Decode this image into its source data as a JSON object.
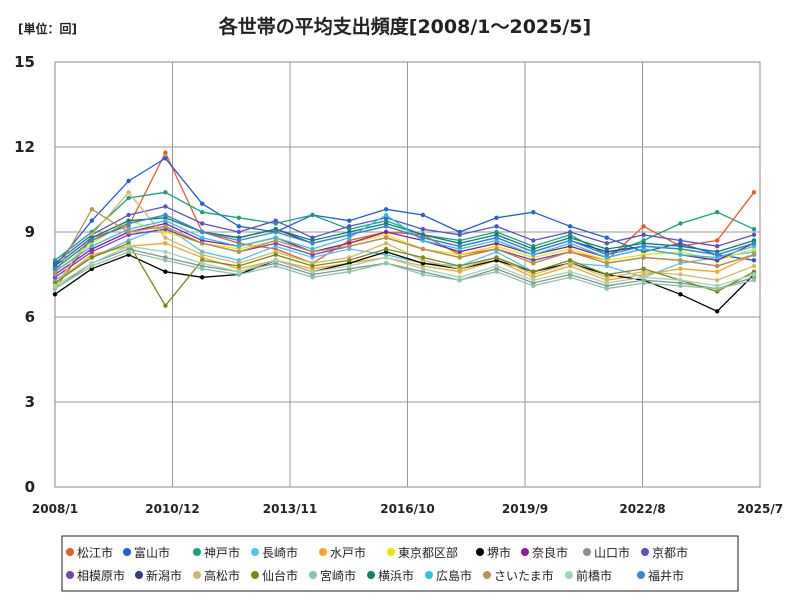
{
  "chart_data": {
    "type": "line",
    "title": "各世帯の平均支出頻度[2008/1～2025/5]",
    "unit_label": "[単位：回]",
    "xlabel": "",
    "ylabel": "",
    "ylim": [
      0,
      15
    ],
    "y_ticks": [
      0,
      3,
      6,
      9,
      12,
      15
    ],
    "x_range": [
      "2008/1",
      "2025/7"
    ],
    "x_ticks": [
      "2008/1",
      "2010/12",
      "2013/11",
      "2016/10",
      "2019/9",
      "2022/8",
      "2025/7"
    ],
    "grid": true,
    "legend_position": "bottom",
    "series": [
      {
        "name": "松江市",
        "color": "#f05a24",
        "values": [
          7.0,
          8.8,
          9.2,
          11.8,
          9.0,
          8.6,
          8.4,
          7.9,
          8.7,
          9.0,
          8.9,
          8.2,
          8.4,
          7.9,
          8.3,
          8.0,
          9.2,
          8.5,
          8.7,
          10.4
        ]
      },
      {
        "name": "富山市",
        "color": "#1f5fd8",
        "values": [
          7.8,
          9.4,
          10.8,
          11.6,
          10.0,
          9.2,
          9.0,
          9.6,
          9.4,
          9.8,
          9.6,
          9.0,
          9.5,
          9.7,
          9.2,
          8.8,
          8.3,
          8.6,
          8.2,
          8.0
        ]
      },
      {
        "name": "神戸市",
        "color": "#17a37a",
        "values": [
          8.0,
          9.0,
          10.2,
          10.4,
          9.7,
          9.5,
          9.3,
          9.6,
          9.1,
          9.4,
          8.9,
          8.7,
          9.0,
          8.5,
          8.9,
          8.2,
          8.7,
          9.3,
          9.7,
          9.1
        ]
      },
      {
        "name": "長崎市",
        "color": "#4fc3f7",
        "values": [
          7.3,
          8.1,
          8.7,
          9.2,
          8.3,
          8.0,
          8.5,
          8.1,
          8.4,
          8.2,
          7.9,
          7.8,
          8.3,
          7.6,
          7.9,
          7.8,
          7.4,
          7.9,
          8.1,
          8.3
        ]
      },
      {
        "name": "水戸市",
        "color": "#f5a623",
        "values": [
          7.2,
          8.2,
          8.5,
          8.6,
          8.1,
          7.7,
          8.0,
          7.7,
          7.9,
          8.1,
          7.8,
          7.6,
          8.0,
          7.4,
          7.8,
          7.3,
          7.5,
          7.7,
          7.6,
          8.2
        ]
      },
      {
        "name": "東京都区部",
        "color": "#f5e400",
        "values": [
          7.6,
          8.6,
          9.4,
          9.0,
          8.6,
          8.4,
          8.7,
          8.3,
          8.6,
          8.9,
          8.4,
          8.2,
          8.5,
          8.1,
          8.4,
          8.0,
          8.2,
          8.3,
          8.0,
          8.4
        ]
      },
      {
        "name": "堺市",
        "color": "#000000",
        "values": [
          6.8,
          7.7,
          8.2,
          7.6,
          7.4,
          7.5,
          8.0,
          7.6,
          7.9,
          8.3,
          7.9,
          7.7,
          8.0,
          7.6,
          7.9,
          7.5,
          7.3,
          6.8,
          6.2,
          7.5
        ]
      },
      {
        "name": "奈良市",
        "color": "#8e1a9e",
        "values": [
          7.5,
          8.4,
          9.0,
          9.3,
          8.7,
          8.5,
          8.8,
          8.3,
          8.6,
          9.0,
          8.7,
          8.3,
          8.6,
          8.2,
          8.5,
          8.1,
          8.4,
          8.2,
          8.0,
          8.6
        ]
      },
      {
        "name": "山口市",
        "color": "#8a8f99",
        "values": [
          7.0,
          7.9,
          8.4,
          8.1,
          7.8,
          7.6,
          7.9,
          7.5,
          7.7,
          7.9,
          7.6,
          7.3,
          7.7,
          7.2,
          7.5,
          7.1,
          7.3,
          7.2,
          7.0,
          7.4
        ]
      },
      {
        "name": "京都市",
        "color": "#5a4fcf",
        "values": [
          7.9,
          8.9,
          9.6,
          9.9,
          9.3,
          9.0,
          9.4,
          8.8,
          9.2,
          9.5,
          9.1,
          8.9,
          9.2,
          8.7,
          9.0,
          8.6,
          8.9,
          8.7,
          8.5,
          8.9
        ]
      },
      {
        "name": "相模原市",
        "color": "#7b3fb8",
        "values": [
          7.4,
          8.3,
          8.9,
          9.1,
          8.6,
          8.3,
          8.6,
          8.2,
          8.5,
          8.8,
          8.4,
          8.1,
          8.4,
          8.0,
          8.3,
          7.9,
          8.1,
          8.0,
          7.8,
          8.2
        ]
      },
      {
        "name": "新潟市",
        "color": "#2e3a8c",
        "values": [
          7.7,
          8.7,
          9.3,
          9.6,
          9.0,
          8.8,
          9.1,
          8.6,
          8.9,
          9.2,
          8.8,
          8.5,
          8.8,
          8.3,
          8.7,
          8.3,
          8.5,
          8.4,
          8.2,
          8.6
        ]
      },
      {
        "name": "高松市",
        "color": "#d4b86a",
        "values": [
          7.1,
          8.9,
          10.4,
          8.8,
          8.2,
          7.9,
          8.3,
          7.9,
          8.1,
          8.6,
          8.0,
          7.7,
          8.1,
          7.5,
          7.9,
          7.4,
          7.6,
          7.5,
          7.3,
          7.8
        ]
      },
      {
        "name": "仙台市",
        "color": "#7a8a10",
        "values": [
          7.2,
          8.1,
          8.6,
          6.4,
          8.0,
          7.8,
          8.2,
          7.8,
          8.0,
          8.4,
          8.1,
          7.8,
          8.1,
          7.6,
          8.0,
          7.5,
          7.7,
          7.3,
          6.9,
          7.6
        ]
      },
      {
        "name": "宮崎市",
        "color": "#86c9a0",
        "values": [
          7.0,
          7.8,
          8.3,
          8.0,
          7.7,
          7.5,
          7.8,
          7.4,
          7.6,
          7.9,
          7.5,
          7.3,
          7.6,
          7.1,
          7.4,
          7.0,
          7.2,
          7.1,
          7.0,
          7.3
        ]
      },
      {
        "name": "横浜市",
        "color": "#0e7f6a",
        "values": [
          7.8,
          8.8,
          9.4,
          9.5,
          9.0,
          8.8,
          9.1,
          8.7,
          9.0,
          9.3,
          8.9,
          8.6,
          8.9,
          8.4,
          8.8,
          8.4,
          8.6,
          8.5,
          8.3,
          8.7
        ]
      },
      {
        "name": "広島市",
        "color": "#29c5e6",
        "values": [
          7.6,
          8.5,
          9.1,
          9.4,
          8.8,
          8.5,
          8.8,
          8.4,
          8.8,
          9.6,
          8.7,
          8.4,
          8.7,
          8.2,
          8.6,
          8.1,
          8.4,
          8.2,
          8.1,
          8.5
        ]
      },
      {
        "name": "さいたま市",
        "color": "#b8954a",
        "values": [
          7.5,
          9.8,
          9.0,
          9.2,
          8.6,
          8.3,
          8.7,
          8.3,
          8.5,
          8.8,
          8.4,
          8.1,
          8.4,
          7.9,
          8.3,
          7.9,
          8.1,
          8.0,
          7.8,
          8.2
        ]
      },
      {
        "name": "前橋市",
        "color": "#9fd6b0",
        "values": [
          7.1,
          7.9,
          8.5,
          8.3,
          7.9,
          7.6,
          8.0,
          7.6,
          7.8,
          8.1,
          7.7,
          7.4,
          7.8,
          7.3,
          7.6,
          7.2,
          7.4,
          7.3,
          7.1,
          7.5
        ]
      },
      {
        "name": "福井市",
        "color": "#3a86d9",
        "values": [
          7.7,
          8.7,
          9.3,
          9.6,
          9.0,
          8.7,
          9.0,
          8.6,
          8.9,
          9.2,
          8.8,
          8.5,
          8.8,
          8.3,
          8.7,
          8.2,
          8.5,
          8.4,
          8.2,
          8.6
        ]
      }
    ]
  }
}
